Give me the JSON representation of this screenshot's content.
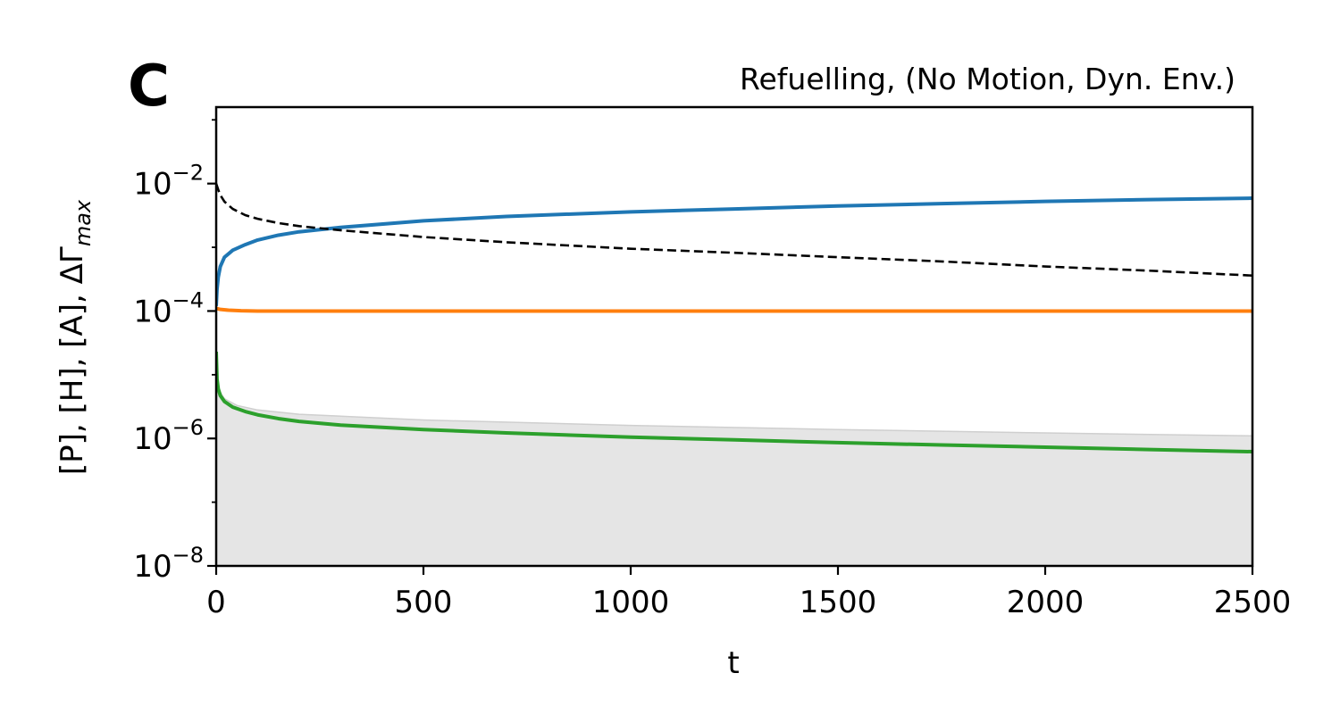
{
  "chart_data": {
    "type": "line",
    "panel_label": "C",
    "title": "Refuelling, (No Motion, Dyn. Env.)",
    "xlabel": "t",
    "ylabel": {
      "main": "[P], [H], [A], ΔΓ",
      "subscript": "max"
    },
    "xlim": [
      0,
      2500
    ],
    "ylim": [
      1e-08,
      0.1585
    ],
    "yscale": "log",
    "grid": false,
    "x_ticks": [
      0,
      500,
      1000,
      1500,
      2000,
      2500
    ],
    "x_tick_labels": [
      "0",
      "500",
      "1000",
      "1500",
      "2000",
      "2500"
    ],
    "y_ticks": [
      1e-08,
      1e-06,
      0.0001,
      0.01
    ],
    "y_tick_labels": [
      {
        "base": "10",
        "exp": "−8"
      },
      {
        "base": "10",
        "exp": "−6"
      },
      {
        "base": "10",
        "exp": "−4"
      },
      {
        "base": "10",
        "exp": "−2"
      }
    ],
    "shaded_region": {
      "color": "#e5e5e5",
      "edge_color": "#cfcfcf",
      "x": [
        0,
        5,
        20,
        50,
        100,
        200,
        500,
        1000,
        1500,
        2000,
        2500
      ],
      "upper": [
        1.8e-05,
        6e-06,
        4.2e-06,
        3.3e-06,
        2.8e-06,
        2.4e-06,
        1.95e-06,
        1.6e-06,
        1.38e-06,
        1.22e-06,
        1.1e-06
      ],
      "lower": 1e-08
    },
    "series": [
      {
        "color": "#1f77b4",
        "style": "solid",
        "x": [
          0,
          2,
          5,
          10,
          20,
          40,
          70,
          100,
          150,
          200,
          300,
          500,
          700,
          1000,
          1250,
          1500,
          1750,
          2000,
          2250,
          2500
        ],
        "y": [
          0.00012,
          0.00022,
          0.00034,
          0.0005,
          0.0007,
          0.0009,
          0.0011,
          0.0013,
          0.00155,
          0.00175,
          0.00205,
          0.0026,
          0.00305,
          0.0036,
          0.004,
          0.00445,
          0.00485,
          0.00525,
          0.0056,
          0.0059
        ]
      },
      {
        "color": "#ff7f0e",
        "style": "solid",
        "x": [
          0,
          10,
          30,
          60,
          100,
          200,
          500,
          1000,
          1500,
          2000,
          2500
        ],
        "y": [
          0.00011,
          0.000106,
          0.000103,
          0.000101,
          0.0001,
          0.0001,
          0.0001,
          0.0001,
          0.0001,
          0.0001,
          0.0001
        ]
      },
      {
        "color": "#2ca02c",
        "style": "solid",
        "x": [
          0,
          2,
          5,
          10,
          20,
          40,
          70,
          100,
          150,
          200,
          300,
          500,
          700,
          1000,
          1250,
          1500,
          1750,
          2000,
          2250,
          2500
        ],
        "y": [
          2.3e-05,
          8.5e-06,
          6e-06,
          4.7e-06,
          3.8e-06,
          3.1e-06,
          2.65e-06,
          2.35e-06,
          2.05e-06,
          1.85e-06,
          1.62e-06,
          1.38e-06,
          1.22e-06,
          1.05e-06,
          9.5e-07,
          8.6e-07,
          7.9e-07,
          7.3e-07,
          6.7e-07,
          6.2e-07
        ]
      },
      {
        "color": "#000000",
        "style": "dashed",
        "x": [
          0,
          5,
          10,
          20,
          40,
          70,
          100,
          150,
          200,
          300,
          500,
          700,
          1000,
          1250,
          1500,
          1750,
          2000,
          2250,
          2500
        ],
        "y": [
          0.01,
          0.008,
          0.0066,
          0.0052,
          0.004,
          0.0032,
          0.0028,
          0.0024,
          0.00215,
          0.00185,
          0.00145,
          0.0012,
          0.00095,
          0.00082,
          0.0007,
          0.0006,
          0.0005,
          0.00043,
          0.00036
        ]
      }
    ]
  }
}
